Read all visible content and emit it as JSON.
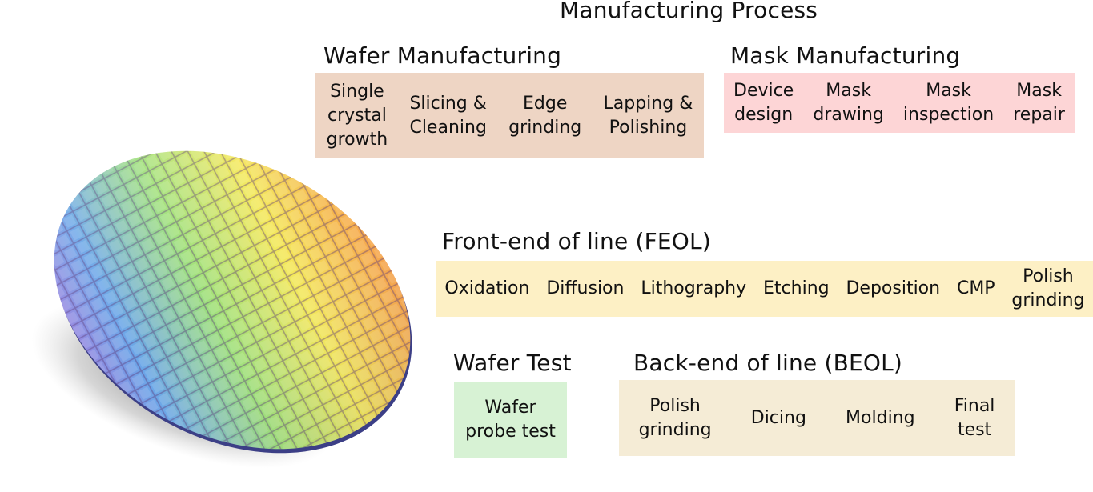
{
  "title": "Manufacturing Process",
  "sections": {
    "wafer": {
      "title": "Wafer Manufacturing",
      "color": "#eed5c4",
      "steps": [
        "Single\ncrystal\ngrowth",
        "Slicing &\nCleaning",
        "Edge\ngrinding",
        "Lapping &\nPolishing"
      ]
    },
    "mask": {
      "title": "Mask Manufacturing",
      "color": "#fdd5d6",
      "steps": [
        "Device\ndesign",
        "Mask\ndrawing",
        "Mask\ninspection",
        "Mask\nrepair"
      ]
    },
    "feol": {
      "title": "Front-end of line (FEOL)",
      "color": "#fdf0c5",
      "steps": [
        "Oxidation",
        "Diffusion",
        "Lithography",
        "Etching",
        "Deposition",
        "CMP",
        "Polish\ngrinding"
      ]
    },
    "test": {
      "title": "Wafer Test",
      "color": "#d7f2d4",
      "steps": [
        "Wafer\nprobe test"
      ]
    },
    "beol": {
      "title": "Back-end of line (BEOL)",
      "color": "#f5ecd6",
      "steps": [
        "Polish\ngrinding",
        "Dicing",
        "Molding",
        "Final\ntest"
      ]
    }
  }
}
